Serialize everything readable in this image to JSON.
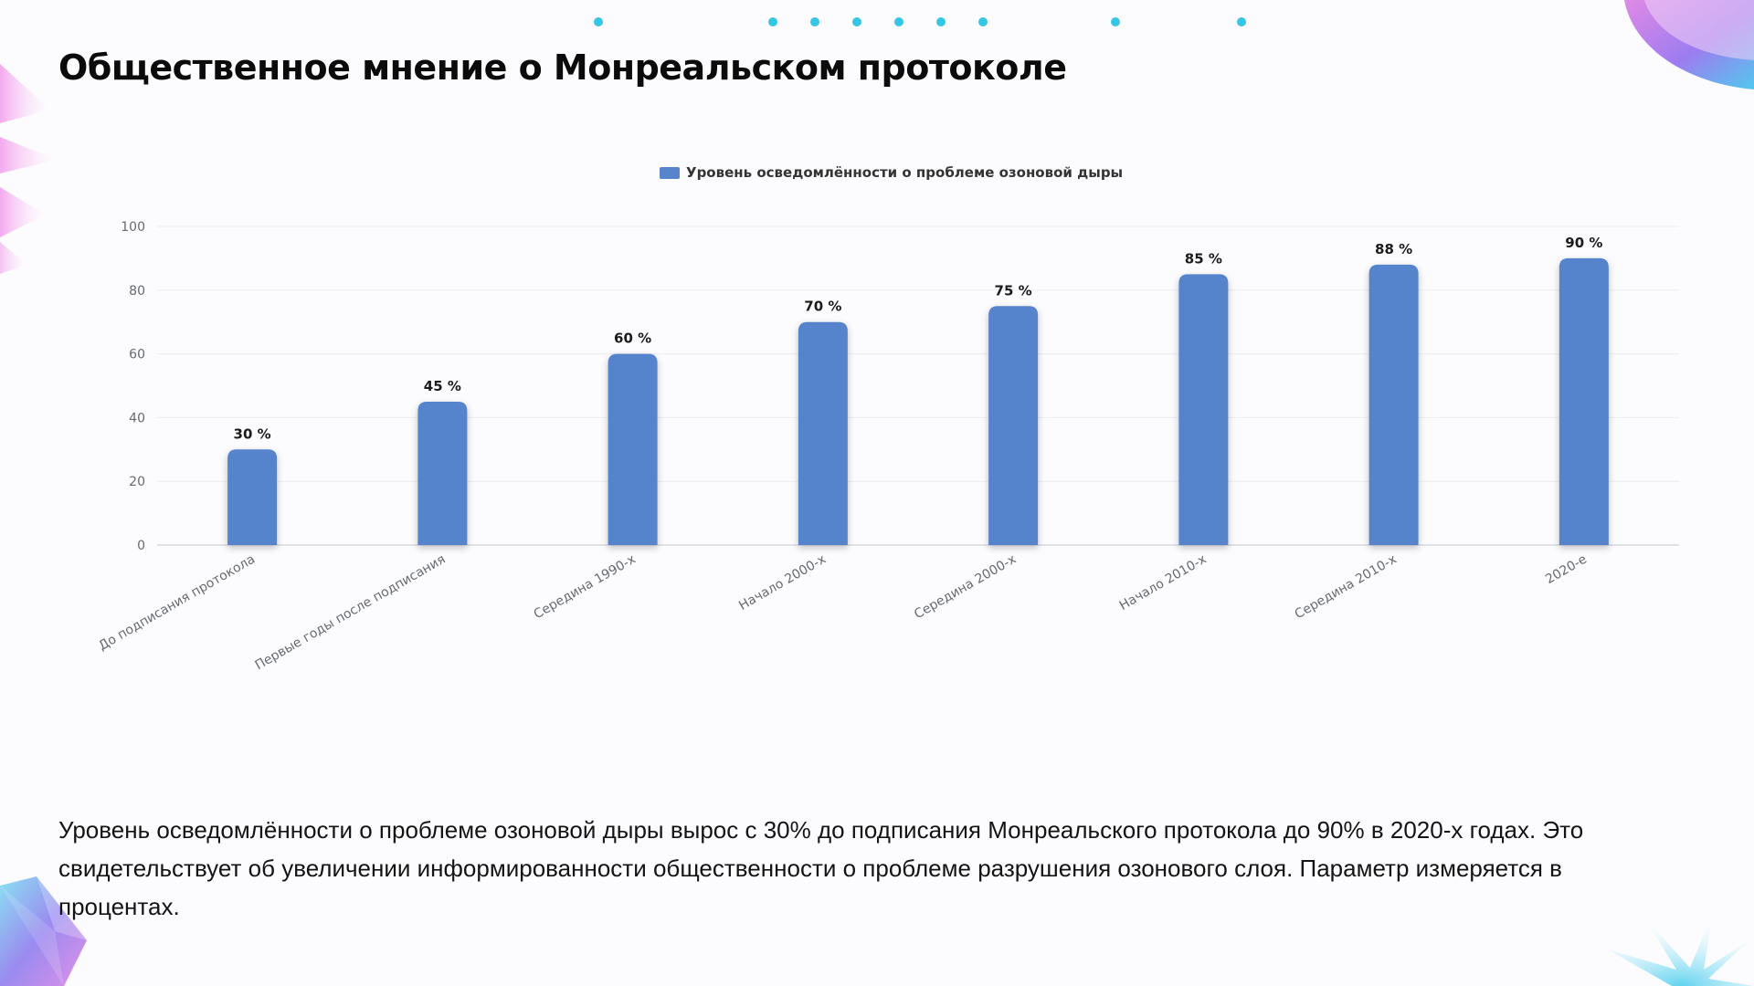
{
  "slide": {
    "title": "Общественное мнение о Монреальском протоколе",
    "description": "Уровень осведомлённости о проблеме озоновой дыры вырос с 30% до подписания Монреальского протокола до 90% в 2020-х годах. Это свидетельствует об увеличении информированности общественности о проблеме разрушения озонового слоя. Параметр измеряется в процентах."
  },
  "colors": {
    "bar": "#5784cc",
    "dots": "#35c6e4",
    "grid": "#e9ecf1",
    "axis_text": "#666a70",
    "value_label": "#1b1b1b"
  },
  "chart_data": {
    "type": "bar",
    "categories": [
      "До подписания протокола",
      "Первые годы после подписания",
      "Середина 1990-х",
      "Начало 2000-х",
      "Середина 2000-х",
      "Начало 2010-х",
      "Середина 2010-х",
      "2020-е"
    ],
    "series": [
      {
        "name": "Уровень осведомлённости о проблеме озоновой дыры",
        "values": [
          30,
          45,
          60,
          70,
          75,
          85,
          88,
          90
        ]
      }
    ],
    "data_labels": [
      "30 %",
      "45 %",
      "60 %",
      "70 %",
      "75 %",
      "85 %",
      "88 %",
      "90 %"
    ],
    "ylim": [
      0,
      100
    ],
    "yticks": [
      0,
      20,
      40,
      60,
      80,
      100
    ],
    "grid": true,
    "legend_position": "top-center"
  }
}
